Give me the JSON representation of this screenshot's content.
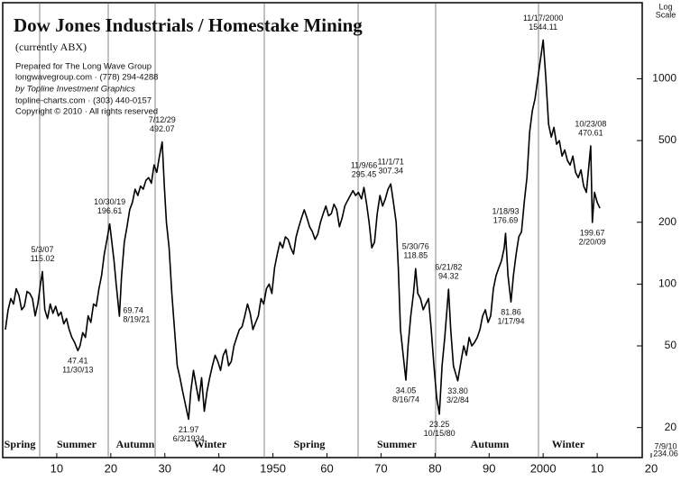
{
  "chart_data": {
    "type": "line",
    "title": "Dow Jones Industrials / Homestake Mining",
    "subtitle": "(currently ABX)",
    "credits": [
      "Prepared for The Long Wave Group",
      "longwavegroup.com · (778) 294-4288",
      "by Topline Investment Graphics",
      "topline-charts.com · (303) 440-0157",
      "Copyright © 2010 · All rights reserved"
    ],
    "scale_note": [
      "Log",
      "Scale"
    ],
    "footnote": [
      "7/9/10",
      "234.06"
    ],
    "seasons": [
      "Spring",
      "Summer",
      "Autumn",
      "Winter",
      "Spring",
      "Summer",
      "Autumn",
      "Winter"
    ],
    "log_scale": true,
    "color": "#000000",
    "xlim": [
      1900,
      2020
    ],
    "ylim": [
      14,
      2300
    ],
    "yticks": [
      20,
      50,
      100,
      200,
      500,
      1000
    ],
    "xticks": [
      {
        "value": 1910,
        "label": "10"
      },
      {
        "value": 1920,
        "label": "20"
      },
      {
        "value": 1930,
        "label": "30"
      },
      {
        "value": 1940,
        "label": "40"
      },
      1950,
      {
        "value": 1960,
        "label": "60"
      },
      {
        "value": 1970,
        "label": "70"
      },
      {
        "value": 1980,
        "label": "80"
      },
      {
        "value": 1990,
        "label": "90"
      },
      2000,
      {
        "value": 2010,
        "label": "10"
      },
      {
        "value": 2020,
        "label": "20"
      }
    ],
    "x": [
      1900.5,
      1901,
      1901.5,
      1902,
      1902.5,
      1903,
      1903.5,
      1904,
      1904.5,
      1905,
      1905.5,
      1906,
      1906.5,
      1907,
      1907.35,
      1907.8,
      1908.3,
      1908.8,
      1909.3,
      1909.8,
      1910.3,
      1910.8,
      1911.3,
      1911.8,
      1912.3,
      1912.8,
      1913.3,
      1913.9,
      1914.3,
      1914.8,
      1915.3,
      1915.8,
      1916.3,
      1916.8,
      1917.3,
      1917.8,
      1918.3,
      1918.8,
      1919.3,
      1919.8,
      1920.2,
      1920.6,
      1921,
      1921.6,
      1922,
      1922.5,
      1923,
      1923.5,
      1924,
      1924.5,
      1925,
      1925.5,
      1926,
      1926.5,
      1927,
      1927.5,
      1928,
      1928.5,
      1929,
      1929.5,
      1929.9,
      1930.3,
      1930.8,
      1931.3,
      1931.8,
      1932.3,
      1932.8,
      1933.3,
      1933.8,
      1934.4,
      1934.8,
      1935.3,
      1935.8,
      1936.3,
      1936.8,
      1937.3,
      1937.8,
      1938.3,
      1938.8,
      1939.3,
      1939.8,
      1940.3,
      1940.8,
      1941.3,
      1941.8,
      1942.3,
      1942.8,
      1943.3,
      1943.8,
      1944.3,
      1944.8,
      1945.3,
      1945.8,
      1946.3,
      1946.8,
      1947.3,
      1947.8,
      1948.3,
      1948.8,
      1949.3,
      1949.8,
      1950.3,
      1950.8,
      1951.3,
      1951.8,
      1952.3,
      1952.8,
      1953.3,
      1953.8,
      1954.3,
      1954.8,
      1955.3,
      1955.8,
      1956.3,
      1956.8,
      1957.3,
      1957.8,
      1958.3,
      1958.8,
      1959.3,
      1959.8,
      1960.3,
      1960.8,
      1961.3,
      1961.8,
      1962.3,
      1962.8,
      1963.3,
      1963.8,
      1964.3,
      1964.8,
      1965.3,
      1965.8,
      1966.4,
      1966.85,
      1967.3,
      1967.8,
      1968.3,
      1968.8,
      1969.3,
      1969.8,
      1970.3,
      1970.8,
      1971.3,
      1971.8,
      1972.3,
      1972.8,
      1973.2,
      1973.6,
      1974.1,
      1974.6,
      1975,
      1975.5,
      1976,
      1976.4,
      1976.8,
      1977.3,
      1977.8,
      1978.3,
      1978.8,
      1979.3,
      1979.8,
      1980.3,
      1980.8,
      1981.3,
      1981.8,
      1982.5,
      1982.9,
      1983.4,
      1984.2,
      1984.8,
      1985.3,
      1985.8,
      1986.3,
      1986.8,
      1987.3,
      1987.8,
      1988.3,
      1988.8,
      1989.3,
      1989.8,
      1990.3,
      1990.8,
      1991.3,
      1991.8,
      1992.3,
      1992.8,
      1993.05,
      1993.5,
      1994.05,
      1994.5,
      1995,
      1995.5,
      1996,
      1996.5,
      1997,
      1997.5,
      1998,
      1998.5,
      1999,
      2000,
      2000.5,
      2001,
      2001.5,
      2002,
      2002.5,
      2003,
      2003.5,
      2004,
      2004.5,
      2005,
      2005.5,
      2006,
      2006.5,
      2007,
      2007.5,
      2008,
      2008.8,
      2009.1,
      2009.5,
      2010,
      2010.5
    ],
    "values": [
      60,
      75,
      85,
      80,
      95,
      88,
      75,
      78,
      92,
      90,
      85,
      70,
      80,
      100,
      115.02,
      75,
      68,
      80,
      72,
      78,
      70,
      73,
      64,
      68,
      60,
      55,
      52,
      47.41,
      50,
      58,
      55,
      70,
      65,
      80,
      78,
      95,
      110,
      140,
      165,
      196.61,
      160,
      130,
      100,
      69.74,
      110,
      160,
      190,
      230,
      250,
      290,
      270,
      300,
      290,
      320,
      330,
      310,
      380,
      350,
      420,
      492.07,
      300,
      200,
      150,
      90,
      60,
      40,
      35,
      30,
      26,
      21.97,
      30,
      38,
      32,
      27,
      35,
      24,
      30,
      35,
      40,
      45,
      42,
      38,
      45,
      48,
      40,
      42,
      50,
      55,
      60,
      62,
      70,
      80,
      72,
      60,
      65,
      70,
      85,
      80,
      95,
      100,
      90,
      120,
      140,
      160,
      150,
      170,
      165,
      150,
      140,
      170,
      190,
      210,
      230,
      210,
      190,
      180,
      165,
      175,
      200,
      220,
      240,
      215,
      220,
      245,
      230,
      190,
      210,
      240,
      255,
      270,
      285,
      270,
      280,
      260,
      295.45,
      250,
      200,
      150,
      160,
      220,
      270,
      240,
      260,
      290,
      307.34,
      250,
      200,
      120,
      60,
      45,
      34.05,
      50,
      70,
      90,
      118.85,
      90,
      85,
      75,
      80,
      85,
      60,
      40,
      28,
      23.25,
      40,
      55,
      94.32,
      60,
      40,
      33.8,
      42,
      50,
      45,
      55,
      50,
      52,
      55,
      60,
      70,
      75,
      65,
      70,
      95,
      110,
      120,
      130,
      150,
      176.69,
      110,
      81.86,
      110,
      140,
      170,
      180,
      250,
      330,
      550,
      700,
      800,
      1000,
      1544.11,
      1000,
      600,
      520,
      580,
      480,
      500,
      420,
      450,
      400,
      380,
      420,
      350,
      330,
      360,
      300,
      280,
      470.61,
      199.67,
      280,
      250,
      234.06
    ],
    "annotations": [
      {
        "date": "5/3/07",
        "x": 1907.35,
        "value": 115.02,
        "value_label": "115.02"
      },
      {
        "date": "11/30/13",
        "x": 1913.9,
        "value": 47.41,
        "value_label": "47.41"
      },
      {
        "date": "10/30/19",
        "x": 1919.8,
        "value": 196.61,
        "value_label": "196.61"
      },
      {
        "date": "8/19/21",
        "x": 1921.6,
        "value": 69.74,
        "value_label": "69.74"
      },
      {
        "date": "7/12/29",
        "x": 1929.5,
        "value": 492.07,
        "value_label": "492.07"
      },
      {
        "date": "6/3/1934",
        "x": 1934.4,
        "value": 21.97,
        "value_label": "21.97"
      },
      {
        "date": "11/9/66",
        "x": 1966.85,
        "value": 295.45,
        "value_label": "295.45"
      },
      {
        "date": "11/1/71",
        "x": 1971.8,
        "value": 307.34,
        "value_label": "307.34"
      },
      {
        "date": "5/30/76",
        "x": 1976.4,
        "value": 118.85,
        "value_label": "118.85"
      },
      {
        "date": "8/16/74",
        "x": 1974.6,
        "value": 34.05,
        "value_label": "34.05"
      },
      {
        "date": "6/21/82",
        "x": 1982.5,
        "value": 94.32,
        "value_label": "94.32"
      },
      {
        "date": "10/15/80",
        "x": 1980.8,
        "value": 23.25,
        "value_label": "23.25"
      },
      {
        "date": "3/2/84",
        "x": 1984.2,
        "value": 33.8,
        "value_label": "33.80"
      },
      {
        "date": "1/18/93",
        "x": 1993.05,
        "value": 176.69,
        "value_label": "176.69"
      },
      {
        "date": "1/17/94",
        "x": 1994.05,
        "value": 81.86,
        "value_label": "81.86"
      },
      {
        "date": "11/17/2000",
        "x": 2000,
        "value": 1544.11,
        "value_label": "1544.11"
      },
      {
        "date": "10/23/08",
        "x": 2008.8,
        "value": 470.61,
        "value_label": "470.61"
      },
      {
        "date": "2/20/09",
        "x": 2009.1,
        "value": 199.67,
        "value_label": "199.67"
      }
    ]
  }
}
